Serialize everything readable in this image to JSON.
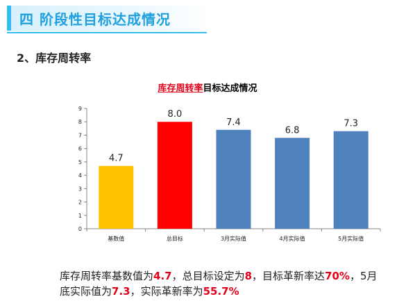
{
  "header": {
    "section_title": "四 阶段性目标达成情况",
    "subheading": "2、库存周转率"
  },
  "chart_data": {
    "type": "bar",
    "title_highlight": "库存周转率",
    "title_rest": "目标达成情况",
    "categories": [
      "基数值",
      "总目标",
      "3月实际值",
      "4月实际值",
      "5月实际值"
    ],
    "values": [
      4.7,
      8.0,
      7.4,
      6.8,
      7.3
    ],
    "data_labels": [
      "4.7",
      "8.0",
      "7.4",
      "6.8",
      "7.3"
    ],
    "colors": [
      "#ffc000",
      "#ff0000",
      "#4f81bd",
      "#4f81bd",
      "#4f81bd"
    ],
    "ylim": [
      0,
      9
    ],
    "yticks": [
      "0",
      "1",
      "2",
      "3",
      "4",
      "5",
      "6",
      "7",
      "8",
      "9"
    ],
    "grid": false,
    "legend": "none"
  },
  "summary": {
    "p1": "库存周转率基数值为",
    "v1": "4.7",
    "p2": "，总目标设定为",
    "v2": "8",
    "p3": "，目标革新率达",
    "v3": "70%",
    "p4": "，5月底实际值为",
    "v4": "7.3",
    "p5": "，实际革新率为",
    "v5": "55.7%"
  }
}
